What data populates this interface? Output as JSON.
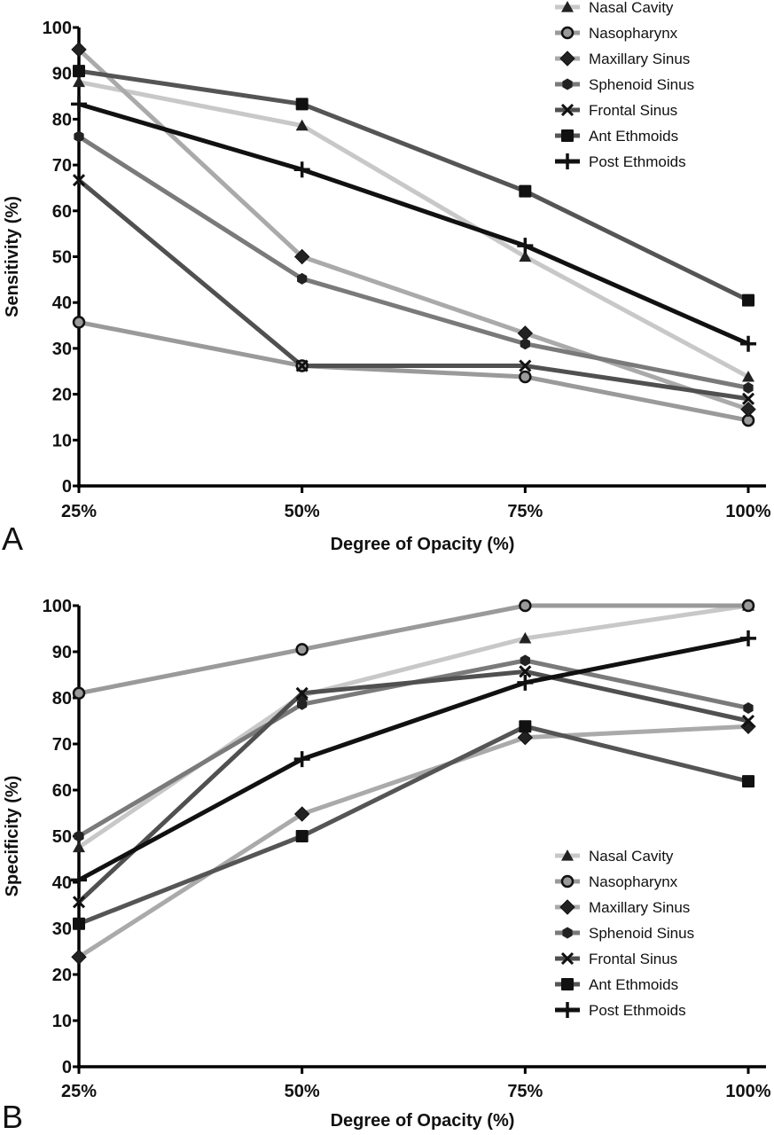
{
  "chart_data": [
    {
      "type": "line",
      "panel_label": "A",
      "title": "",
      "xlabel": "Degree of Opacity (%)",
      "ylabel": "Sensitivity (%)",
      "categories": [
        "25%",
        "50%",
        "75%",
        "100%"
      ],
      "yticks": [
        "0",
        "10",
        "20",
        "30",
        "40",
        "50",
        "60",
        "70",
        "80",
        "90",
        "100"
      ],
      "ylim": [
        0,
        100
      ],
      "grid": false,
      "legend_position": "top-right",
      "series": [
        {
          "name": "Nasal Cavity",
          "marker": "triangle",
          "line_color": "#c8c8c8",
          "marker_fill": "#222222",
          "values": [
            88.1,
            78.6,
            50.0,
            23.8
          ]
        },
        {
          "name": "Nasopharynx",
          "marker": "circle-open",
          "line_color": "#9a9a9a",
          "marker_fill": "#9a9a9a",
          "values": [
            35.7,
            26.2,
            23.8,
            14.3
          ]
        },
        {
          "name": "Maxillary Sinus",
          "marker": "diamond",
          "line_color": "#aaaaaa",
          "marker_fill": "#222222",
          "values": [
            95.2,
            50.0,
            33.3,
            16.7
          ]
        },
        {
          "name": "Sphenoid Sinus",
          "marker": "hexagon",
          "line_color": "#7a7a7a",
          "marker_fill": "#222222",
          "values": [
            76.2,
            45.2,
            31.0,
            21.4
          ]
        },
        {
          "name": "Frontal Sinus",
          "marker": "x",
          "line_color": "#505050",
          "marker_fill": "#111111",
          "values": [
            66.7,
            26.2,
            26.2,
            19.0
          ]
        },
        {
          "name": "Ant Ethmoids",
          "marker": "square",
          "line_color": "#555555",
          "marker_fill": "#111111",
          "values": [
            90.5,
            83.3,
            64.3,
            40.5
          ]
        },
        {
          "name": "Post Ethmoids",
          "marker": "plus",
          "line_color": "#111111",
          "marker_fill": "#111111",
          "values": [
            83.3,
            69.0,
            52.4,
            31.0
          ]
        }
      ]
    },
    {
      "type": "line",
      "panel_label": "B",
      "title": "",
      "xlabel": "Degree of Opacity (%)",
      "ylabel": "Specificity (%)",
      "categories": [
        "25%",
        "50%",
        "75%",
        "100%"
      ],
      "yticks": [
        "0",
        "10",
        "20",
        "30",
        "40",
        "50",
        "60",
        "70",
        "80",
        "90",
        "100"
      ],
      "ylim": [
        0,
        100
      ],
      "grid": false,
      "legend_position": "bottom-right",
      "series": [
        {
          "name": "Nasal Cavity",
          "marker": "triangle",
          "line_color": "#c8c8c8",
          "marker_fill": "#222222",
          "values": [
            47.6,
            80.5,
            92.9,
            100.0
          ]
        },
        {
          "name": "Nasopharynx",
          "marker": "circle-open",
          "line_color": "#9a9a9a",
          "marker_fill": "#9a9a9a",
          "values": [
            81.0,
            90.5,
            100.0,
            100.0
          ]
        },
        {
          "name": "Maxillary Sinus",
          "marker": "diamond",
          "line_color": "#aaaaaa",
          "marker_fill": "#222222",
          "values": [
            23.8,
            54.8,
            71.4,
            73.8
          ]
        },
        {
          "name": "Sphenoid Sinus",
          "marker": "hexagon",
          "line_color": "#7a7a7a",
          "marker_fill": "#222222",
          "values": [
            50.0,
            78.6,
            88.1,
            77.8
          ]
        },
        {
          "name": "Frontal Sinus",
          "marker": "x",
          "line_color": "#505050",
          "marker_fill": "#111111",
          "values": [
            35.7,
            81.0,
            85.7,
            75.0
          ]
        },
        {
          "name": "Ant Ethmoids",
          "marker": "square",
          "line_color": "#555555",
          "marker_fill": "#111111",
          "values": [
            31.0,
            50.0,
            73.8,
            61.9
          ]
        },
        {
          "name": "Post Ethmoids",
          "marker": "plus",
          "line_color": "#111111",
          "marker_fill": "#111111",
          "values": [
            40.5,
            66.7,
            83.3,
            92.9
          ]
        }
      ]
    }
  ]
}
